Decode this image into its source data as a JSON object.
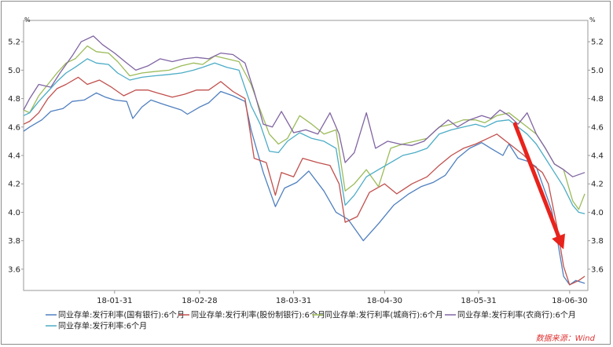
{
  "chart_data": {
    "type": "line",
    "y_unit": "%",
    "ylim": [
      3.45,
      5.35
    ],
    "y_ticks": [
      "3.6",
      "3.8",
      "4.0",
      "4.2",
      "4.4",
      "4.6",
      "4.8",
      "5.0",
      "5.2"
    ],
    "x_range": [
      "2018-01-01",
      "2018-07-06"
    ],
    "x_ticks": [
      {
        "date": "2018-01-31",
        "label": "18-01-31"
      },
      {
        "date": "2018-02-28",
        "label": "18-02-28"
      },
      {
        "date": "2018-03-31",
        "label": "18-03-31"
      },
      {
        "date": "2018-04-30",
        "label": "18-04-30"
      },
      {
        "date": "2018-05-31",
        "label": "18-05-31"
      },
      {
        "date": "2018-06-30",
        "label": "18-06-30"
      }
    ],
    "legend_position": "bottom",
    "source_note": "数据来源：Wind",
    "trend_arrow": {
      "from": {
        "date": "2018-06-12",
        "value": 4.62
      },
      "to": {
        "date": "2018-06-28",
        "value": 3.74
      },
      "color": "#e8231c"
    },
    "series": [
      {
        "name": "同业存单:发行利率(国有银行):6个月",
        "color": "#4f7fbf",
        "points": [
          [
            "2018-01-01",
            4.57
          ],
          [
            "2018-01-03",
            4.6
          ],
          [
            "2018-01-07",
            4.65
          ],
          [
            "2018-01-10",
            4.71
          ],
          [
            "2018-01-14",
            4.73
          ],
          [
            "2018-01-17",
            4.78
          ],
          [
            "2018-01-21",
            4.79
          ],
          [
            "2018-01-25",
            4.84
          ],
          [
            "2018-01-28",
            4.81
          ],
          [
            "2018-01-31",
            4.79
          ],
          [
            "2018-02-04",
            4.78
          ],
          [
            "2018-02-06",
            4.66
          ],
          [
            "2018-02-09",
            4.74
          ],
          [
            "2018-02-12",
            4.79
          ],
          [
            "2018-02-16",
            4.76
          ],
          [
            "2018-02-22",
            4.72
          ],
          [
            "2018-02-24",
            4.69
          ],
          [
            "2018-02-28",
            4.74
          ],
          [
            "2018-03-03",
            4.77
          ],
          [
            "2018-03-07",
            4.85
          ],
          [
            "2018-03-11",
            4.82
          ],
          [
            "2018-03-15",
            4.78
          ],
          [
            "2018-03-17",
            4.58
          ],
          [
            "2018-03-21",
            4.28
          ],
          [
            "2018-03-25",
            4.04
          ],
          [
            "2018-03-28",
            4.17
          ],
          [
            "2018-04-01",
            4.21
          ],
          [
            "2018-04-05",
            4.29
          ],
          [
            "2018-04-10",
            4.15
          ],
          [
            "2018-04-14",
            4.0
          ],
          [
            "2018-04-18",
            3.95
          ],
          [
            "2018-04-23",
            3.8
          ],
          [
            "2018-04-28",
            3.92
          ],
          [
            "2018-05-03",
            4.05
          ],
          [
            "2018-05-08",
            4.13
          ],
          [
            "2018-05-12",
            4.18
          ],
          [
            "2018-05-16",
            4.21
          ],
          [
            "2018-05-20",
            4.26
          ],
          [
            "2018-05-24",
            4.38
          ],
          [
            "2018-05-28",
            4.45
          ],
          [
            "2018-06-01",
            4.49
          ],
          [
            "2018-06-04",
            4.45
          ],
          [
            "2018-06-08",
            4.4
          ],
          [
            "2018-06-10",
            4.48
          ],
          [
            "2018-06-13",
            4.38
          ],
          [
            "2018-06-16",
            4.36
          ],
          [
            "2018-06-19",
            4.32
          ],
          [
            "2018-06-21",
            4.2
          ],
          [
            "2018-06-24",
            4.02
          ],
          [
            "2018-06-26",
            3.8
          ],
          [
            "2018-06-28",
            3.55
          ],
          [
            "2018-06-30",
            3.49
          ],
          [
            "2018-07-02",
            3.52
          ],
          [
            "2018-07-05",
            3.5
          ]
        ]
      },
      {
        "name": "同业存单:发行利率(股份制银行):6个月",
        "color": "#c0504d",
        "points": [
          [
            "2018-01-01",
            4.62
          ],
          [
            "2018-01-03",
            4.64
          ],
          [
            "2018-01-06",
            4.7
          ],
          [
            "2018-01-09",
            4.8
          ],
          [
            "2018-01-12",
            4.87
          ],
          [
            "2018-01-15",
            4.9
          ],
          [
            "2018-01-19",
            4.95
          ],
          [
            "2018-01-22",
            4.9
          ],
          [
            "2018-01-26",
            4.93
          ],
          [
            "2018-01-30",
            4.88
          ],
          [
            "2018-02-03",
            4.82
          ],
          [
            "2018-02-07",
            4.86
          ],
          [
            "2018-02-11",
            4.86
          ],
          [
            "2018-02-14",
            4.84
          ],
          [
            "2018-02-19",
            4.81
          ],
          [
            "2018-02-23",
            4.83
          ],
          [
            "2018-02-27",
            4.86
          ],
          [
            "2018-03-03",
            4.86
          ],
          [
            "2018-03-07",
            4.92
          ],
          [
            "2018-03-11",
            4.85
          ],
          [
            "2018-03-15",
            4.8
          ],
          [
            "2018-03-18",
            4.38
          ],
          [
            "2018-03-22",
            4.35
          ],
          [
            "2018-03-25",
            4.12
          ],
          [
            "2018-03-27",
            4.28
          ],
          [
            "2018-03-31",
            4.25
          ],
          [
            "2018-04-03",
            4.38
          ],
          [
            "2018-04-08",
            4.35
          ],
          [
            "2018-04-12",
            4.33
          ],
          [
            "2018-04-15",
            4.2
          ],
          [
            "2018-04-17",
            3.93
          ],
          [
            "2018-04-21",
            3.97
          ],
          [
            "2018-04-25",
            4.14
          ],
          [
            "2018-04-30",
            4.2
          ],
          [
            "2018-05-04",
            4.13
          ],
          [
            "2018-05-09",
            4.2
          ],
          [
            "2018-05-14",
            4.25
          ],
          [
            "2018-05-18",
            4.33
          ],
          [
            "2018-05-22",
            4.4
          ],
          [
            "2018-05-26",
            4.45
          ],
          [
            "2018-05-30",
            4.48
          ],
          [
            "2018-06-03",
            4.52
          ],
          [
            "2018-06-06",
            4.55
          ],
          [
            "2018-06-09",
            4.5
          ],
          [
            "2018-06-12",
            4.45
          ],
          [
            "2018-06-15",
            4.4
          ],
          [
            "2018-06-18",
            4.33
          ],
          [
            "2018-06-21",
            4.28
          ],
          [
            "2018-06-23",
            4.2
          ],
          [
            "2018-06-26",
            3.88
          ],
          [
            "2018-06-28",
            3.62
          ],
          [
            "2018-06-30",
            3.49
          ],
          [
            "2018-07-03",
            3.52
          ],
          [
            "2018-07-05",
            3.55
          ]
        ]
      },
      {
        "name": "同业存单:发行利率(城商行):6个月",
        "color": "#9bbb59",
        "points": [
          [
            "2018-01-01",
            4.72
          ],
          [
            "2018-01-03",
            4.7
          ],
          [
            "2018-01-06",
            4.82
          ],
          [
            "2018-01-09",
            4.9
          ],
          [
            "2018-01-12",
            4.98
          ],
          [
            "2018-01-15",
            5.05
          ],
          [
            "2018-01-18",
            5.08
          ],
          [
            "2018-01-22",
            5.17
          ],
          [
            "2018-01-25",
            5.13
          ],
          [
            "2018-01-29",
            5.12
          ],
          [
            "2018-02-01",
            5.06
          ],
          [
            "2018-02-05",
            4.96
          ],
          [
            "2018-02-09",
            4.98
          ],
          [
            "2018-02-13",
            4.99
          ],
          [
            "2018-02-18",
            5.0
          ],
          [
            "2018-02-22",
            5.03
          ],
          [
            "2018-02-26",
            5.05
          ],
          [
            "2018-03-01",
            5.04
          ],
          [
            "2018-03-05",
            5.1
          ],
          [
            "2018-03-09",
            5.08
          ],
          [
            "2018-03-13",
            5.06
          ],
          [
            "2018-03-17",
            4.9
          ],
          [
            "2018-03-20",
            4.72
          ],
          [
            "2018-03-23",
            4.55
          ],
          [
            "2018-03-26",
            4.48
          ],
          [
            "2018-03-29",
            4.52
          ],
          [
            "2018-04-02",
            4.68
          ],
          [
            "2018-04-06",
            4.62
          ],
          [
            "2018-04-10",
            4.55
          ],
          [
            "2018-04-14",
            4.58
          ],
          [
            "2018-04-17",
            4.15
          ],
          [
            "2018-04-20",
            4.2
          ],
          [
            "2018-04-24",
            4.3
          ],
          [
            "2018-04-28",
            4.18
          ],
          [
            "2018-05-02",
            4.45
          ],
          [
            "2018-05-06",
            4.48
          ],
          [
            "2018-05-10",
            4.5
          ],
          [
            "2018-05-14",
            4.52
          ],
          [
            "2018-05-18",
            4.6
          ],
          [
            "2018-05-22",
            4.62
          ],
          [
            "2018-05-26",
            4.65
          ],
          [
            "2018-05-30",
            4.65
          ],
          [
            "2018-06-02",
            4.63
          ],
          [
            "2018-06-06",
            4.68
          ],
          [
            "2018-06-10",
            4.7
          ],
          [
            "2018-06-13",
            4.65
          ],
          [
            "2018-06-16",
            4.6
          ],
          [
            "2018-06-19",
            4.55
          ],
          [
            "2018-06-22",
            4.45
          ],
          [
            "2018-06-25",
            4.34
          ],
          [
            "2018-06-28",
            4.3
          ],
          [
            "2018-07-01",
            4.08
          ],
          [
            "2018-07-03",
            4.02
          ],
          [
            "2018-07-05",
            4.13
          ]
        ]
      },
      {
        "name": "同业存单:发行利率(农商行):6个月",
        "color": "#8064a2",
        "points": [
          [
            "2018-01-01",
            4.72
          ],
          [
            "2018-01-03",
            4.8
          ],
          [
            "2018-01-06",
            4.9
          ],
          [
            "2018-01-10",
            4.88
          ],
          [
            "2018-01-13",
            4.98
          ],
          [
            "2018-01-17",
            5.1
          ],
          [
            "2018-01-20",
            5.2
          ],
          [
            "2018-01-24",
            5.24
          ],
          [
            "2018-01-27",
            5.18
          ],
          [
            "2018-01-31",
            5.12
          ],
          [
            "2018-02-04",
            5.05
          ],
          [
            "2018-02-07",
            5.0
          ],
          [
            "2018-02-11",
            5.03
          ],
          [
            "2018-02-15",
            5.08
          ],
          [
            "2018-02-19",
            5.06
          ],
          [
            "2018-02-23",
            5.08
          ],
          [
            "2018-02-27",
            5.09
          ],
          [
            "2018-03-03",
            5.08
          ],
          [
            "2018-03-07",
            5.12
          ],
          [
            "2018-03-11",
            5.11
          ],
          [
            "2018-03-15",
            5.05
          ],
          [
            "2018-03-18",
            4.85
          ],
          [
            "2018-03-21",
            4.62
          ],
          [
            "2018-03-24",
            4.6
          ],
          [
            "2018-03-27",
            4.71
          ],
          [
            "2018-03-31",
            4.56
          ],
          [
            "2018-04-04",
            4.58
          ],
          [
            "2018-04-08",
            4.55
          ],
          [
            "2018-04-12",
            4.7
          ],
          [
            "2018-04-15",
            4.55
          ],
          [
            "2018-04-17",
            4.35
          ],
          [
            "2018-04-20",
            4.42
          ],
          [
            "2018-04-24",
            4.7
          ],
          [
            "2018-04-27",
            4.45
          ],
          [
            "2018-05-01",
            4.5
          ],
          [
            "2018-05-05",
            4.48
          ],
          [
            "2018-05-09",
            4.47
          ],
          [
            "2018-05-13",
            4.5
          ],
          [
            "2018-05-17",
            4.58
          ],
          [
            "2018-05-21",
            4.65
          ],
          [
            "2018-05-24",
            4.6
          ],
          [
            "2018-05-28",
            4.65
          ],
          [
            "2018-06-01",
            4.68
          ],
          [
            "2018-06-04",
            4.66
          ],
          [
            "2018-06-07",
            4.72
          ],
          [
            "2018-06-10",
            4.68
          ],
          [
            "2018-06-13",
            4.62
          ],
          [
            "2018-06-16",
            4.7
          ],
          [
            "2018-06-19",
            4.55
          ],
          [
            "2018-06-22",
            4.45
          ],
          [
            "2018-06-25",
            4.34
          ],
          [
            "2018-06-28",
            4.3
          ],
          [
            "2018-07-01",
            4.25
          ],
          [
            "2018-07-05",
            4.28
          ]
        ]
      },
      {
        "name": "同业存单:发行利率:6个月",
        "color": "#4bacc6",
        "points": [
          [
            "2018-01-01",
            4.68
          ],
          [
            "2018-01-03",
            4.7
          ],
          [
            "2018-01-06",
            4.78
          ],
          [
            "2018-01-09",
            4.85
          ],
          [
            "2018-01-12",
            4.92
          ],
          [
            "2018-01-15",
            4.98
          ],
          [
            "2018-01-18",
            5.02
          ],
          [
            "2018-01-22",
            5.08
          ],
          [
            "2018-01-25",
            5.05
          ],
          [
            "2018-01-29",
            5.04
          ],
          [
            "2018-02-01",
            4.98
          ],
          [
            "2018-02-05",
            4.93
          ],
          [
            "2018-02-09",
            4.95
          ],
          [
            "2018-02-13",
            4.96
          ],
          [
            "2018-02-18",
            4.97
          ],
          [
            "2018-02-22",
            4.98
          ],
          [
            "2018-02-26",
            5.0
          ],
          [
            "2018-03-01",
            5.02
          ],
          [
            "2018-03-05",
            5.05
          ],
          [
            "2018-03-09",
            5.02
          ],
          [
            "2018-03-13",
            5.0
          ],
          [
            "2018-03-17",
            4.75
          ],
          [
            "2018-03-20",
            4.62
          ],
          [
            "2018-03-23",
            4.43
          ],
          [
            "2018-03-26",
            4.42
          ],
          [
            "2018-03-29",
            4.5
          ],
          [
            "2018-04-02",
            4.56
          ],
          [
            "2018-04-06",
            4.52
          ],
          [
            "2018-04-10",
            4.5
          ],
          [
            "2018-04-14",
            4.45
          ],
          [
            "2018-04-17",
            4.05
          ],
          [
            "2018-04-20",
            4.12
          ],
          [
            "2018-04-24",
            4.25
          ],
          [
            "2018-04-28",
            4.3
          ],
          [
            "2018-05-02",
            4.35
          ],
          [
            "2018-05-06",
            4.4
          ],
          [
            "2018-05-10",
            4.42
          ],
          [
            "2018-05-14",
            4.45
          ],
          [
            "2018-05-18",
            4.55
          ],
          [
            "2018-05-22",
            4.58
          ],
          [
            "2018-05-26",
            4.6
          ],
          [
            "2018-05-30",
            4.62
          ],
          [
            "2018-06-02",
            4.6
          ],
          [
            "2018-06-06",
            4.64
          ],
          [
            "2018-06-10",
            4.65
          ],
          [
            "2018-06-13",
            4.6
          ],
          [
            "2018-06-16",
            4.55
          ],
          [
            "2018-06-19",
            4.48
          ],
          [
            "2018-06-22",
            4.38
          ],
          [
            "2018-06-25",
            4.28
          ],
          [
            "2018-06-28",
            4.18
          ],
          [
            "2018-07-01",
            4.05
          ],
          [
            "2018-07-03",
            4.0
          ],
          [
            "2018-07-05",
            3.99
          ]
        ]
      }
    ]
  }
}
